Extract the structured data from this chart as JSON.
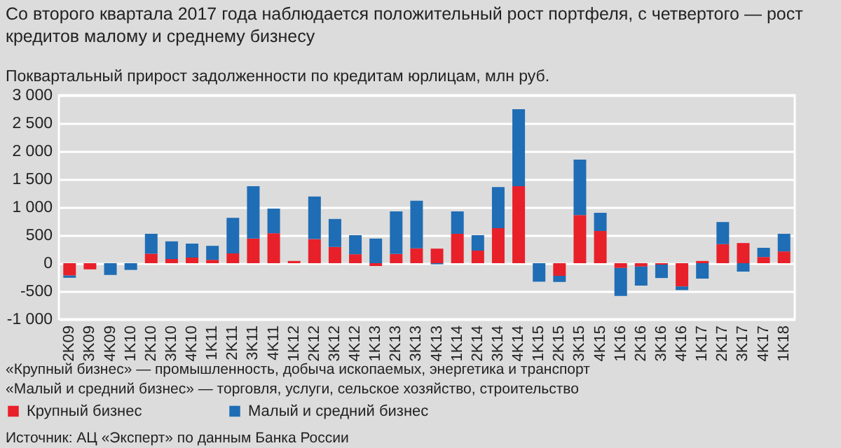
{
  "chart_data": {
    "type": "bar",
    "stacked": true,
    "title": "Со второго квартала 2017 года наблюдается положительный рост портфеля, с четвертого — рост кредитов малому и среднему бизнесу",
    "ylabel": "Поквартальный прирост задолженности по кредитам юрлицам, млн руб.",
    "categories": [
      "2K09",
      "3K09",
      "4K09",
      "1K10",
      "2K10",
      "3K10",
      "4K10",
      "1K11",
      "2K11",
      "3K11",
      "4K11",
      "1K12",
      "2K12",
      "3K12",
      "4K12",
      "1K13",
      "2K13",
      "3K13",
      "4K13",
      "1K14",
      "2K14",
      "3K14",
      "4K14",
      "1K15",
      "2K15",
      "3K15",
      "4K15",
      "1K16",
      "2K16",
      "3K16",
      "4K16",
      "1K17",
      "2K17",
      "3K17",
      "4K17",
      "1K18"
    ],
    "series": [
      {
        "name": "Крупный бизнес",
        "color": "#e8202a",
        "values": [
          -220,
          -110,
          0,
          0,
          170,
          75,
          100,
          60,
          175,
          440,
          535,
          40,
          430,
          290,
          160,
          -50,
          165,
          265,
          260,
          525,
          225,
          625,
          1375,
          0,
          -225,
          860,
          575,
          -85,
          -60,
          -25,
          -415,
          40,
          340,
          360,
          110,
          210
        ]
      },
      {
        "name": "Малый и средний бизнес",
        "color": "#1f6db5",
        "values": [
          -40,
          0,
          -210,
          -120,
          355,
          315,
          250,
          250,
          635,
          935,
          440,
          0,
          760,
          500,
          340,
          440,
          760,
          850,
          -20,
          400,
          275,
          735,
          1375,
          -330,
          -110,
          990,
          325,
          -500,
          -340,
          -240,
          -65,
          -275,
          395,
          -150,
          165,
          315
        ]
      }
    ],
    "ylim": [
      -1000,
      3000
    ],
    "yticks": [
      {
        "value": -1000,
        "label": "-1 000"
      },
      -500,
      0,
      500,
      {
        "value": 1000,
        "label": "1 000"
      },
      {
        "value": 1500,
        "label": "1 500"
      },
      {
        "value": 2000,
        "label": "2 000"
      },
      {
        "value": 2500,
        "label": "2 500"
      },
      {
        "value": 3000,
        "label": "3 000"
      }
    ],
    "grid": "y",
    "legend": "bottom",
    "annotations": [
      "«Крупный бизнес» — промышленность, добыча ископаемых, энергетика и транспорт",
      "«Малый и средний бизнес» — торговля, услуги, сельское хозяйство, строительство",
      "Источник: АЦ «Эксперт» по данным Банка России"
    ]
  }
}
